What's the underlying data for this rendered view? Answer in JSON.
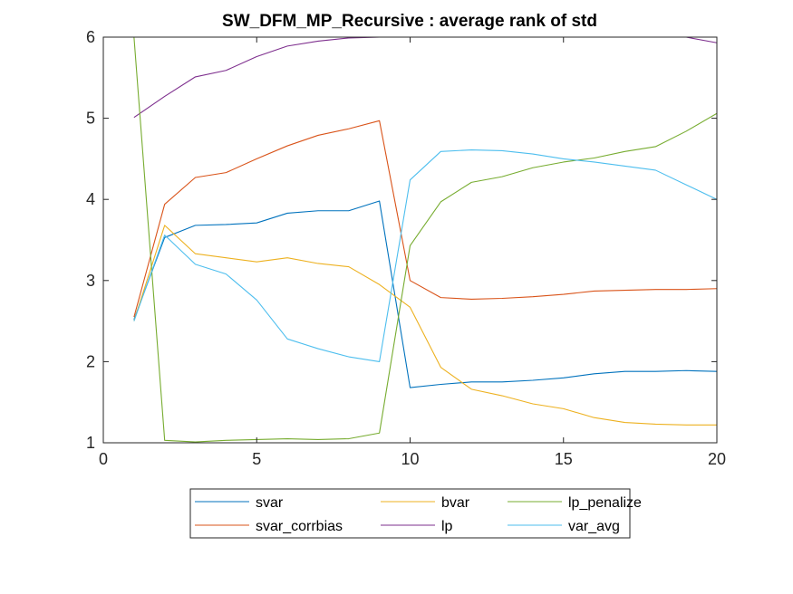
{
  "chart_data": {
    "type": "line",
    "title": "SW_DFM_MP_Recursive : average rank of std",
    "xlabel": "",
    "ylabel": "",
    "xlim": [
      0,
      20
    ],
    "ylim": [
      1,
      6
    ],
    "xticks": [
      0,
      5,
      10,
      15,
      20
    ],
    "yticks": [
      1,
      2,
      3,
      4,
      5,
      6
    ],
    "grid": false,
    "legend_position": "bottom-outside",
    "x": [
      1,
      2,
      3,
      4,
      5,
      6,
      7,
      8,
      9,
      10,
      11,
      12,
      13,
      14,
      15,
      16,
      17,
      18,
      19,
      20
    ],
    "series": [
      {
        "name": "svar",
        "color": "#0072BD",
        "values": [
          2.52,
          3.53,
          3.68,
          3.69,
          3.71,
          3.83,
          3.86,
          3.86,
          3.98,
          1.68,
          1.72,
          1.75,
          1.75,
          1.77,
          1.8,
          1.85,
          1.88,
          1.88,
          1.89,
          1.88
        ]
      },
      {
        "name": "svar_corrbias",
        "color": "#D95319",
        "values": [
          2.55,
          3.94,
          4.27,
          4.33,
          4.5,
          4.66,
          4.79,
          4.87,
          4.97,
          3.0,
          2.79,
          2.77,
          2.78,
          2.8,
          2.83,
          2.87,
          2.88,
          2.89,
          2.89,
          2.9
        ]
      },
      {
        "name": "bvar",
        "color": "#EDB120",
        "values": [
          2.5,
          3.68,
          3.33,
          3.28,
          3.23,
          3.28,
          3.21,
          3.17,
          2.95,
          2.67,
          1.93,
          1.66,
          1.58,
          1.48,
          1.42,
          1.31,
          1.25,
          1.23,
          1.22,
          1.22
        ]
      },
      {
        "name": "lp",
        "color": "#7E2F8E",
        "values": [
          5.01,
          5.27,
          5.51,
          5.59,
          5.76,
          5.89,
          5.95,
          5.99,
          6.0,
          6.0,
          6.0,
          6.0,
          6.0,
          6.0,
          6.0,
          6.0,
          6.0,
          6.0,
          6.0,
          5.93
        ]
      },
      {
        "name": "lp_penalize",
        "color": "#77AC30",
        "values": [
          6.0,
          1.03,
          1.01,
          1.03,
          1.04,
          1.05,
          1.04,
          1.05,
          1.12,
          3.43,
          3.97,
          4.21,
          4.28,
          4.39,
          4.46,
          4.51,
          4.59,
          4.65,
          4.84,
          5.06
        ]
      },
      {
        "name": "var_avg",
        "color": "#4DBEEE",
        "values": [
          2.5,
          3.56,
          3.2,
          3.08,
          2.76,
          2.28,
          2.16,
          2.06,
          2.0,
          4.24,
          4.59,
          4.61,
          4.6,
          4.56,
          4.5,
          4.46,
          4.41,
          4.36,
          4.18,
          4.0
        ]
      }
    ],
    "legend_order": [
      "svar",
      "bvar",
      "lp_penalize",
      "svar_corrbias",
      "lp",
      "var_avg"
    ]
  }
}
